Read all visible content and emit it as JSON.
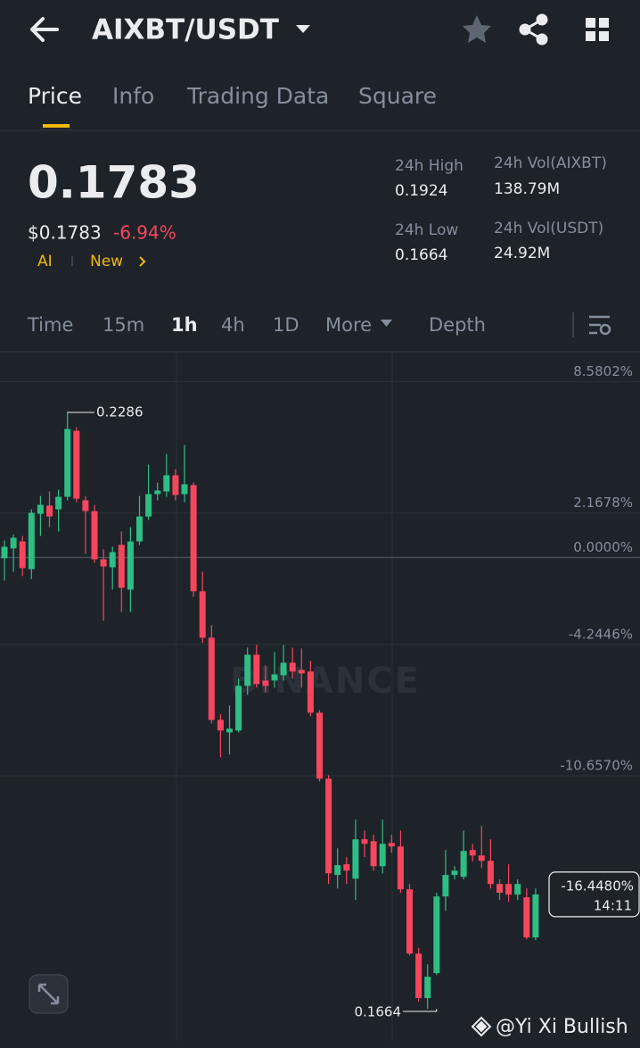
{
  "header": {
    "pair": "AIXBT/USDT"
  },
  "tabs": [
    "Price",
    "Info",
    "Trading Data",
    "Square"
  ],
  "price": {
    "last": "0.1783",
    "usd": "$0.1783",
    "change": "-6.94%",
    "tags": [
      "AI",
      "New"
    ]
  },
  "stats": [
    {
      "label": "24h High",
      "value": "0.1924"
    },
    {
      "label": "24h Low",
      "value": "0.1664"
    },
    {
      "label": "24h Vol(AIXBT)",
      "value": "138.79M"
    },
    {
      "label": "24h Vol(USDT)",
      "value": "24.92M"
    }
  ],
  "intervals": [
    "Time",
    "15m",
    "1h",
    "4h",
    "1D",
    "More",
    "Depth"
  ],
  "credit": "@Yi Xi Bullish",
  "chart_data": {
    "type": "candlestick",
    "watermark": "BINANCE",
    "up_color": "#2ebd85",
    "down_color": "#f6465d",
    "ylim": [
      -23.6,
      10
    ],
    "yticks": [
      {
        "value": 8.5802,
        "label": "8.5802%"
      },
      {
        "value": 2.1678,
        "label": "2.1678%"
      },
      {
        "value": 0,
        "label": "0.0000%"
      },
      {
        "value": -4.2446,
        "label": "-4.2446%"
      },
      {
        "value": -10.657,
        "label": "-10.6570%"
      }
    ],
    "grid": true,
    "max_label": "0.2286",
    "min_label": "0.1664",
    "last": {
      "value": -16.448,
      "label": "-16.4480%"
    },
    "countdown": "14:11",
    "open": [
      -0.04,
      0.44,
      0.78,
      -0.57,
      2.13,
      2.53,
      2.35,
      2.96,
      6.18,
      2.79,
      2.26,
      -0.09,
      -0.48,
      0.61,
      -1.57,
      0.78,
      2.0,
      3.09,
      3.22,
      4.01,
      3.09,
      3.53,
      -1.65,
      -3.92,
      -7.93,
      -8.54,
      -8.45,
      -6.27,
      -4.75,
      -6.01,
      -6.01,
      -5.75,
      -5.14,
      -5.49,
      -5.57,
      -7.58,
      -10.8,
      -15.5,
      -14.98,
      -15.68,
      -13.76,
      -13.85,
      -15.07,
      -13.94,
      -14.11,
      -16.2,
      -19.34,
      -21.51,
      -20.29,
      -16.55,
      -15.5,
      -15.59,
      -14.28,
      -14.55,
      -14.81,
      -15.94,
      -15.94,
      -16.46,
      -16.59,
      -18.55
    ],
    "high": [
      0.83,
      1.13,
      1.05,
      2.35,
      3.0,
      3.22,
      3.31,
      7.06,
      6.36,
      3.0,
      2.57,
      0.39,
      0.52,
      1.26,
      1.48,
      3.0,
      4.53,
      3.66,
      5.05,
      4.31,
      5.49,
      3.66,
      -0.7,
      -3.31,
      -7.66,
      -7.23,
      -5.92,
      -4.4,
      -4.27,
      -5.27,
      -4.62,
      -4.27,
      -4.4,
      -4.44,
      -5.05,
      -7.45,
      -10.63,
      -14.2,
      -14.63,
      -12.8,
      -13.33,
      -13.54,
      -12.8,
      -13.54,
      -13.33,
      -15.94,
      -19.07,
      -19.86,
      -16.37,
      -14.28,
      -15.07,
      -13.33,
      -13.98,
      -13.11,
      -13.76,
      -15.72,
      -14.98,
      -15.72,
      -16.16,
      -16.16
    ],
    "low": [
      -1.13,
      -0.7,
      -0.91,
      -1.05,
      1.05,
      1.48,
      1.26,
      2.79,
      2.7,
      0.17,
      -0.26,
      -3.09,
      -1.57,
      -2.66,
      -2.66,
      0.61,
      1.83,
      2.79,
      2.96,
      2.79,
      2.7,
      -1.92,
      -4.18,
      -8.1,
      -9.76,
      -9.62,
      -8.54,
      -6.71,
      -6.36,
      -6.58,
      -6.36,
      -6.01,
      -5.92,
      -6.36,
      -7.75,
      -10.93,
      -15.94,
      -16.16,
      -15.94,
      -16.72,
      -14.63,
      -15.29,
      -15.42,
      -14.42,
      -16.37,
      -19.42,
      -21.69,
      -22.04,
      -20.38,
      -17.25,
      -15.72,
      -15.72,
      -14.85,
      -15.16,
      -16.16,
      -16.72,
      -16.81,
      -16.72,
      -18.64,
      -18.68
    ],
    "close": [
      0.52,
      0.96,
      -0.52,
      2.18,
      2.57,
      2.0,
      2.96,
      6.27,
      2.87,
      2.26,
      -0.09,
      -0.44,
      0.26,
      -1.48,
      0.78,
      2.0,
      3.09,
      3.27,
      4.01,
      3.05,
      3.57,
      -1.65,
      -3.92,
      -7.93,
      -8.45,
      -8.36,
      -6.27,
      -4.75,
      -6.18,
      -6.27,
      -5.71,
      -5.14,
      -5.57,
      -5.66,
      -7.58,
      -10.8,
      -15.42,
      -15.02,
      -15.29,
      -13.76,
      -13.98,
      -15.07,
      -13.98,
      -14.11,
      -16.2,
      -19.34,
      -21.51,
      -20.47,
      -16.55,
      -15.5,
      -15.29,
      -14.33,
      -14.55,
      -14.81,
      -15.94,
      -16.37,
      -16.46,
      -15.94,
      -18.55,
      -16.45
    ]
  }
}
